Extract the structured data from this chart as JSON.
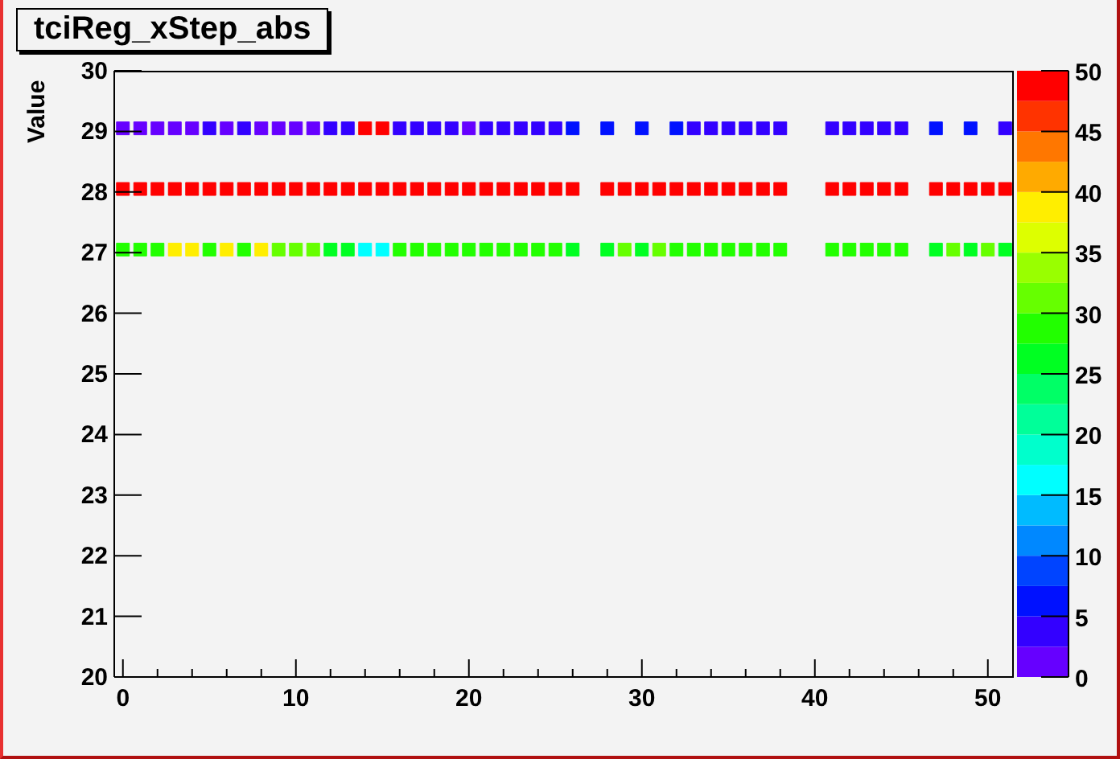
{
  "chart_data": {
    "type": "scatter",
    "title": "tciReg_xStep_abs",
    "ylabel": "Value",
    "marker": "square",
    "xlim": [
      -0.5,
      51.5
    ],
    "xticks": [
      0,
      {
        "value": 2,
        "label": null
      },
      {
        "value": 4,
        "label": null
      },
      {
        "value": 6,
        "label": null
      },
      {
        "value": 8,
        "label": null
      },
      10,
      {
        "value": 12,
        "label": null
      },
      {
        "value": 14,
        "label": null
      },
      {
        "value": 16,
        "label": null
      },
      {
        "value": 18,
        "label": null
      },
      20,
      {
        "value": 22,
        "label": null
      },
      {
        "value": 24,
        "label": null
      },
      {
        "value": 26,
        "label": null
      },
      {
        "value": 28,
        "label": null
      },
      30,
      {
        "value": 32,
        "label": null
      },
      {
        "value": 34,
        "label": null
      },
      {
        "value": 36,
        "label": null
      },
      {
        "value": 38,
        "label": null
      },
      40,
      {
        "value": 42,
        "label": null
      },
      {
        "value": 44,
        "label": null
      },
      {
        "value": 46,
        "label": null
      },
      {
        "value": 48,
        "label": null
      },
      50
    ],
    "ylim": [
      20,
      30
    ],
    "yticks": [
      20,
      21,
      22,
      23,
      24,
      25,
      26,
      27,
      28,
      29,
      30
    ],
    "clim": [
      0,
      50
    ],
    "cticks": [
      0,
      5,
      10,
      15,
      20,
      25,
      30,
      35,
      40,
      45,
      50
    ],
    "series": [
      {
        "x": [
          0,
          1,
          2,
          3,
          4,
          5,
          6,
          7,
          8,
          9,
          10,
          11,
          12,
          13,
          14,
          15,
          16,
          17,
          18,
          19,
          20,
          21,
          22,
          23,
          24,
          25,
          26,
          28,
          30,
          32,
          33,
          34,
          35,
          36,
          37,
          38,
          41,
          42,
          43,
          44,
          45,
          47,
          49,
          51
        ],
        "values": [
          29.05,
          29.05,
          29.05,
          29.05,
          29.05,
          29.05,
          29.05,
          29.05,
          29.05,
          29.05,
          29.05,
          29.05,
          29.05,
          29.05,
          29.05,
          29.05,
          29.05,
          29.05,
          29.05,
          29.05,
          29.05,
          29.05,
          29.05,
          29.05,
          29.05,
          29.05,
          29.05,
          29.05,
          29.05,
          29.05,
          29.05,
          29.05,
          29.05,
          29.05,
          29.05,
          29.05,
          29.05,
          29.05,
          29.05,
          29.05,
          29.05,
          29.05,
          29.05,
          29.05
        ],
        "cvalues": [
          1,
          1,
          1,
          1,
          1,
          4,
          1,
          4,
          1,
          1,
          1,
          1,
          4,
          4,
          49,
          49,
          4,
          4,
          4,
          4,
          1,
          4,
          4,
          4,
          4,
          4,
          6,
          6,
          6,
          6,
          4,
          4,
          4,
          4,
          4,
          4,
          4,
          4,
          4,
          4,
          4,
          6,
          6,
          4
        ],
        "colors": [
          "#6600ff",
          "#6600ff",
          "#6600ff",
          "#6600ff",
          "#6600ff",
          "#3300ff",
          "#6600ff",
          "#3300ff",
          "#6600ff",
          "#6600ff",
          "#6600ff",
          "#6600ff",
          "#3300ff",
          "#3300ff",
          "#ff0000",
          "#ff0000",
          "#3300ff",
          "#3300ff",
          "#3300ff",
          "#3300ff",
          "#6600ff",
          "#3300ff",
          "#3300ff",
          "#3300ff",
          "#3300ff",
          "#3300ff",
          "#0011ff",
          "#0011ff",
          "#0011ff",
          "#0011ff",
          "#3300ff",
          "#3300ff",
          "#3300ff",
          "#3300ff",
          "#3300ff",
          "#3300ff",
          "#3300ff",
          "#3300ff",
          "#3300ff",
          "#3300ff",
          "#3300ff",
          "#0011ff",
          "#0011ff",
          "#3300ff"
        ]
      },
      {
        "x": [
          0,
          1,
          2,
          3,
          4,
          5,
          6,
          7,
          8,
          9,
          10,
          11,
          12,
          13,
          14,
          15,
          16,
          17,
          18,
          19,
          20,
          21,
          22,
          23,
          24,
          25,
          26,
          28,
          29,
          30,
          31,
          32,
          33,
          34,
          35,
          36,
          37,
          38,
          41,
          42,
          43,
          44,
          45,
          47,
          48,
          49,
          50,
          51
        ],
        "values": [
          28.05,
          28.05,
          28.05,
          28.05,
          28.05,
          28.05,
          28.05,
          28.05,
          28.05,
          28.05,
          28.05,
          28.05,
          28.05,
          28.05,
          28.05,
          28.05,
          28.05,
          28.05,
          28.05,
          28.05,
          28.05,
          28.05,
          28.05,
          28.05,
          28.05,
          28.05,
          28.05,
          28.05,
          28.05,
          28.05,
          28.05,
          28.05,
          28.05,
          28.05,
          28.05,
          28.05,
          28.05,
          28.05,
          28.05,
          28.05,
          28.05,
          28.05,
          28.05,
          28.05,
          28.05,
          28.05,
          28.05,
          28.05
        ],
        "cvalues": [
          49,
          49,
          49,
          49,
          49,
          49,
          49,
          49,
          49,
          49,
          49,
          49,
          49,
          49,
          49,
          49,
          49,
          49,
          49,
          49,
          49,
          49,
          49,
          49,
          49,
          49,
          49,
          49,
          49,
          49,
          49,
          49,
          49,
          49,
          49,
          49,
          49,
          49,
          49,
          49,
          49,
          49,
          49,
          49,
          49,
          49,
          49,
          49
        ]
      },
      {
        "x": [
          0,
          1,
          2,
          3,
          4,
          5,
          6,
          7,
          8,
          9,
          10,
          11,
          12,
          13,
          14,
          15,
          16,
          17,
          18,
          19,
          20,
          21,
          22,
          23,
          24,
          25,
          26,
          28,
          29,
          30,
          31,
          32,
          33,
          34,
          35,
          36,
          37,
          38,
          41,
          42,
          43,
          44,
          45,
          47,
          48,
          49,
          50,
          51
        ],
        "values": [
          27.05,
          27.05,
          27.05,
          27.05,
          27.05,
          27.05,
          27.05,
          27.05,
          27.05,
          27.05,
          27.05,
          27.05,
          27.05,
          27.05,
          27.05,
          27.05,
          27.05,
          27.05,
          27.05,
          27.05,
          27.05,
          27.05,
          27.05,
          27.05,
          27.05,
          27.05,
          27.05,
          27.05,
          27.05,
          27.05,
          27.05,
          27.05,
          27.05,
          27.05,
          27.05,
          27.05,
          27.05,
          27.05,
          27.05,
          27.05,
          27.05,
          27.05,
          27.05,
          27.05,
          27.05,
          27.05,
          27.05,
          27.05
        ],
        "cvalues": [
          29,
          29,
          29,
          39,
          39,
          29,
          39,
          29,
          39,
          31,
          31,
          31,
          26,
          26,
          16,
          16,
          29,
          29,
          29,
          29,
          29,
          29,
          29,
          29,
          29,
          29,
          26,
          26,
          31,
          26,
          31,
          29,
          29,
          29,
          29,
          29,
          29,
          29,
          29,
          29,
          29,
          29,
          29,
          26,
          31,
          26,
          31,
          26
        ],
        "colors": [
          "#22ff00",
          "#22ff00",
          "#22ff00",
          "#ffee00",
          "#ffee00",
          "#22ff00",
          "#ffee00",
          "#22ff00",
          "#ffee00",
          "#66ff00",
          "#66ff00",
          "#66ff00",
          "#00ff22",
          "#00ff22",
          "#00ffff",
          "#00ffff",
          "#22ff00",
          "#22ff00",
          "#22ff00",
          "#22ff00",
          "#22ff00",
          "#22ff00",
          "#22ff00",
          "#22ff00",
          "#22ff00",
          "#22ff00",
          "#00ff22",
          "#00ff22",
          "#66ff00",
          "#00ff22",
          "#66ff00",
          "#22ff00",
          "#22ff00",
          "#22ff00",
          "#22ff00",
          "#22ff00",
          "#22ff00",
          "#22ff00",
          "#22ff00",
          "#22ff00",
          "#22ff00",
          "#22ff00",
          "#22ff00",
          "#00ff22",
          "#66ff00",
          "#00ff22",
          "#66ff00",
          "#00ff22"
        ]
      }
    ]
  }
}
